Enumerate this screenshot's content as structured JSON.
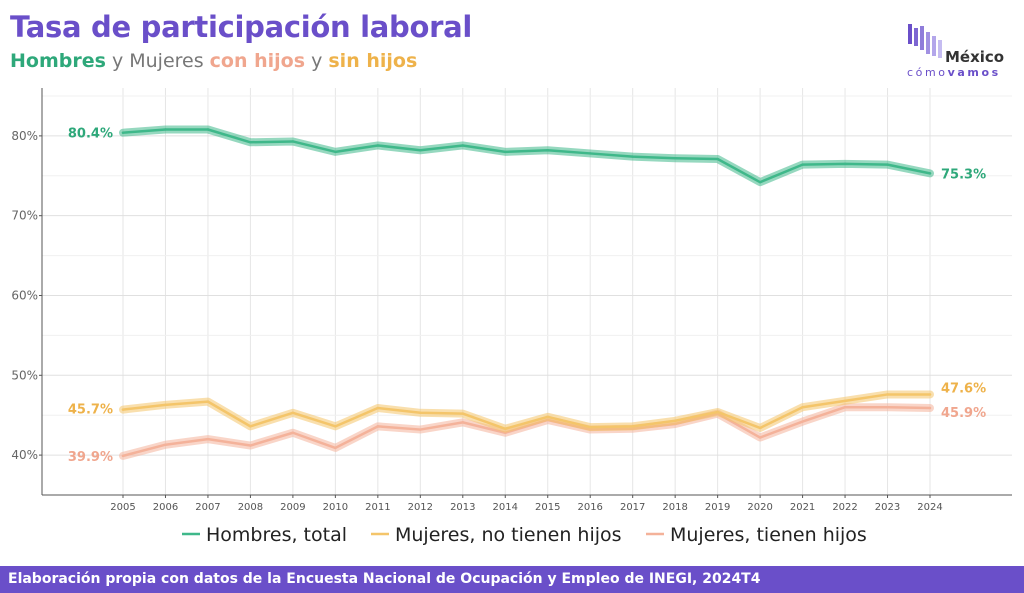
{
  "header": {
    "title": "Tasa de participación laboral",
    "subtitle": {
      "part1": "Hombres",
      "sep1": " y Mujeres ",
      "part2": "con hijos",
      "sep2": " y ",
      "part3": "sin hijos"
    }
  },
  "logo": {
    "name": "México",
    "sub_a": "cómo",
    "sub_b": "vamos"
  },
  "colors": {
    "hombres": "#3fb88a",
    "no_hijos": "#f4c56a",
    "con_hijos": "#f4b29a",
    "hombres_label": "#2ea87a",
    "no_hijos_label": "#eeb24a",
    "con_hijos_label": "#f0a68e",
    "brand": "#6a4fc9"
  },
  "chart_data": {
    "type": "line",
    "x": [
      2005,
      2006,
      2007,
      2008,
      2009,
      2010,
      2011,
      2012,
      2013,
      2014,
      2015,
      2016,
      2017,
      2018,
      2019,
      2020,
      2021,
      2022,
      2023,
      2024
    ],
    "x_tick_labels": [
      "2005",
      "2006",
      "2007",
      "2008",
      "2009",
      "2010",
      "2011",
      "2012",
      "2013",
      "2014",
      "2015",
      "2016",
      "2017",
      "2018",
      "2019",
      "2020",
      "2021",
      "2022",
      "2023",
      "2024"
    ],
    "y_ticks": [
      40,
      50,
      60,
      70,
      80
    ],
    "y_tick_labels": [
      "40%",
      "50%",
      "60%",
      "70%",
      "80%"
    ],
    "ylim": [
      35,
      86
    ],
    "grid": true,
    "legend_position": "bottom",
    "series": [
      {
        "name": "Hombres, total",
        "color_key": "hombres",
        "values": [
          80.4,
          80.8,
          80.8,
          79.2,
          79.3,
          78.0,
          78.8,
          78.2,
          78.8,
          78.0,
          78.2,
          77.8,
          77.4,
          77.2,
          77.1,
          74.2,
          76.4,
          76.5,
          76.4,
          75.3
        ],
        "start_label": "80.4%",
        "end_label": "75.3%"
      },
      {
        "name": "Mujeres, no tienen hijos",
        "color_key": "no_hijos",
        "values": [
          45.7,
          46.3,
          46.7,
          43.6,
          45.3,
          43.6,
          45.9,
          45.3,
          45.2,
          43.3,
          44.8,
          43.5,
          43.6,
          44.3,
          45.4,
          43.4,
          46.0,
          46.8,
          47.6,
          47.6
        ],
        "start_label": "45.7%",
        "end_label": "47.6%"
      },
      {
        "name": "Mujeres, tienen hijos",
        "color_key": "con_hijos",
        "values": [
          39.9,
          41.3,
          42.0,
          41.2,
          42.8,
          40.9,
          43.6,
          43.2,
          44.1,
          42.8,
          44.4,
          43.2,
          43.3,
          43.9,
          45.2,
          42.2,
          44.2,
          46.0,
          46.0,
          45.9
        ],
        "start_label": "39.9%",
        "end_label": "45.9%"
      }
    ]
  },
  "footer": {
    "text": "Elaboración propia con datos de la Encuesta Nacional de Ocupación y Empleo de INEGI, 2024T4"
  }
}
